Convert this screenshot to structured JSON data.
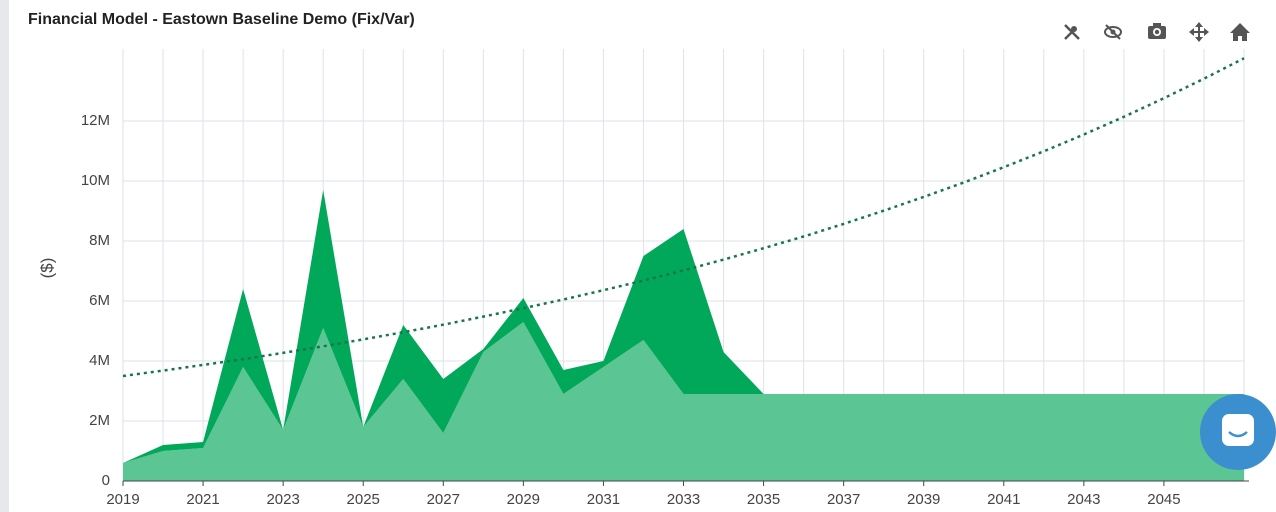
{
  "chart_data": {
    "type": "area",
    "title": "Financial Model - Eastown Baseline Demo (Fix/Var)",
    "y_label": "($)",
    "x": [
      2019,
      2020,
      2021,
      2022,
      2023,
      2024,
      2025,
      2026,
      2027,
      2028,
      2029,
      2030,
      2031,
      2032,
      2033,
      2034,
      2035,
      2036,
      2037,
      2038,
      2039,
      2040,
      2041,
      2042,
      2043,
      2044,
      2045,
      2046,
      2047
    ],
    "series": [
      {
        "color": "#5cc594",
        "values": [
          600000,
          1000000,
          1100000,
          3800000,
          1700000,
          5100000,
          1800000,
          3400000,
          1600000,
          4300000,
          5300000,
          2900000,
          3800000,
          4700000,
          2900000,
          2900000,
          2900000,
          2900000,
          2900000,
          2900000,
          2900000,
          2900000,
          2900000,
          2900000,
          2900000,
          2900000,
          2900000,
          2900000,
          2900000
        ]
      },
      {
        "color": "#02a85a",
        "values": [
          0,
          200000,
          200000,
          2600000,
          0,
          4600000,
          0,
          1800000,
          1800000,
          100000,
          800000,
          800000,
          200000,
          2800000,
          5500000,
          1400000,
          0,
          0,
          0,
          0,
          0,
          0,
          0,
          0,
          0,
          0,
          0,
          0,
          0
        ]
      },
      {
        "type": "line",
        "color": "#17764a",
        "dash": "dot",
        "values": [
          3500000,
          3680000,
          3870000,
          4060000,
          4270000,
          4490000,
          4720000,
          4960000,
          5210000,
          5480000,
          5760000,
          6050000,
          6360000,
          6680000,
          7020000,
          7380000,
          7760000,
          8150000,
          8570000,
          9010000,
          9470000,
          9950000,
          10460000,
          10990000,
          11550000,
          12140000,
          12760000,
          13410000,
          14090000
        ]
      }
    ],
    "stacked": true,
    "xlim": [
      2019,
      2047
    ],
    "xticks": [
      2019,
      2021,
      2023,
      2025,
      2027,
      2029,
      2031,
      2033,
      2035,
      2037,
      2039,
      2041,
      2043,
      2045
    ],
    "ylim": [
      0,
      14400000
    ],
    "yticks": [
      0,
      {
        "value": 2000000,
        "label": "2M"
      },
      {
        "value": 4000000,
        "label": "4M"
      },
      {
        "value": 6000000,
        "label": "6M"
      },
      {
        "value": 8000000,
        "label": "8M"
      },
      {
        "value": 10000000,
        "label": "10M"
      },
      {
        "value": 12000000,
        "label": "12M"
      }
    ],
    "grid": true
  }
}
